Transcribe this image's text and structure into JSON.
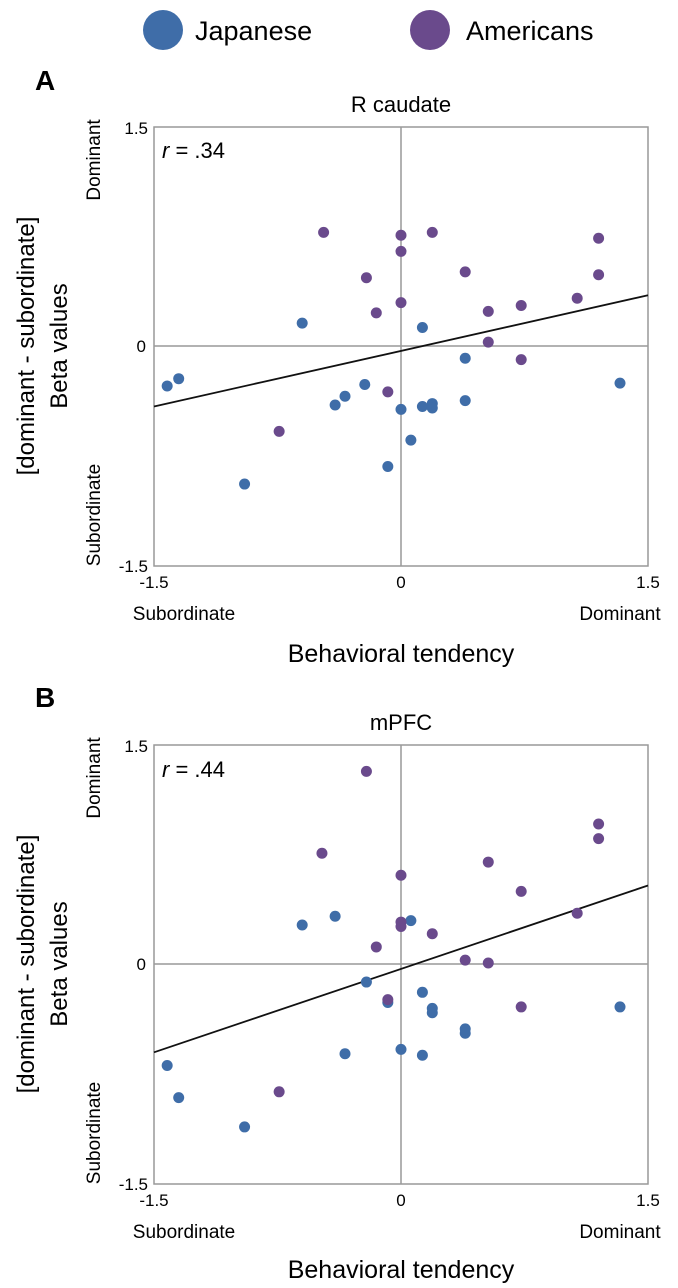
{
  "legend": {
    "items": [
      {
        "label": "Japanese",
        "color": "#3f6da8"
      },
      {
        "label": "Americans",
        "color": "#6a4a8c"
      }
    ]
  },
  "colors": {
    "Japanese": "#3f6da8",
    "Americans": "#6a4a8c",
    "axis": "#999999",
    "fit_line": "#111111"
  },
  "chart_data": [
    {
      "panel": "A",
      "type": "scatter",
      "title": "R caudate",
      "annotation": {
        "prefix": "r",
        "text": " = .34"
      },
      "xlabel": "Behavioral tendency",
      "ylabel_line1": "[dominant - subordinate]",
      "ylabel_line2": "Beta values",
      "x_left_label": "Subordinate",
      "x_right_label": "Dominant",
      "y_top_label": "Dominant",
      "y_bottom_label": "Subordinate",
      "xlim": [
        -1.5,
        1.5
      ],
      "ylim": [
        -1.5,
        1.5
      ],
      "xticks": [
        {
          "value": -1.5,
          "label": "-1.5"
        },
        {
          "value": 0,
          "label": "0"
        },
        {
          "value": 1.5,
          "label": "1.5"
        }
      ],
      "yticks": [
        {
          "value": 1.5,
          "label": "1.5"
        },
        {
          "value": 0,
          "label": "0"
        },
        {
          "value": -1.5,
          "label": "-1.5"
        }
      ],
      "fit_line": [
        [
          -1.5,
          -0.41
        ],
        [
          1.5,
          0.35
        ]
      ],
      "series": [
        {
          "name": "Japanese",
          "points": [
            [
              -1.42,
              -0.27
            ],
            [
              -1.35,
              -0.22
            ],
            [
              -0.95,
              -0.94
            ],
            [
              -0.6,
              0.16
            ],
            [
              -0.4,
              -0.4
            ],
            [
              -0.34,
              -0.34
            ],
            [
              -0.22,
              -0.26
            ],
            [
              -0.08,
              -0.82
            ],
            [
              0.0,
              -0.43
            ],
            [
              0.06,
              -0.64
            ],
            [
              0.13,
              0.13
            ],
            [
              0.13,
              -0.41
            ],
            [
              0.19,
              -0.39
            ],
            [
              0.19,
              -0.42
            ],
            [
              0.39,
              -0.08
            ],
            [
              0.39,
              -0.37
            ],
            [
              1.33,
              -0.25
            ]
          ]
        },
        {
          "name": "Americans",
          "points": [
            [
              -0.74,
              -0.58
            ],
            [
              -0.47,
              0.78
            ],
            [
              -0.21,
              0.47
            ],
            [
              -0.15,
              0.23
            ],
            [
              -0.08,
              -0.31
            ],
            [
              0.0,
              0.76
            ],
            [
              0.0,
              0.65
            ],
            [
              0.0,
              0.3
            ],
            [
              0.19,
              0.78
            ],
            [
              0.39,
              0.51
            ],
            [
              0.53,
              0.24
            ],
            [
              0.53,
              0.03
            ],
            [
              0.73,
              0.28
            ],
            [
              0.73,
              -0.09
            ],
            [
              1.07,
              0.33
            ],
            [
              1.2,
              0.74
            ],
            [
              1.2,
              0.49
            ]
          ]
        }
      ]
    },
    {
      "panel": "B",
      "type": "scatter",
      "title": "mPFC",
      "annotation": {
        "prefix": "r",
        "text": " = .44"
      },
      "xlabel": "Behavioral tendency",
      "ylabel_line1": "[dominant - subordinate]",
      "ylabel_line2": "Beta values",
      "x_left_label": "Subordinate",
      "x_right_label": "Dominant",
      "y_top_label": "Dominant",
      "y_bottom_label": "Subordinate",
      "xlim": [
        -1.5,
        1.5
      ],
      "ylim": [
        -1.5,
        1.5
      ],
      "xticks": [
        {
          "value": -1.5,
          "label": "-1.5"
        },
        {
          "value": 0,
          "label": "0"
        },
        {
          "value": 1.5,
          "label": "1.5"
        }
      ],
      "yticks": [
        {
          "value": 1.5,
          "label": "1.5"
        },
        {
          "value": 0,
          "label": "0"
        },
        {
          "value": -1.5,
          "label": "-1.5"
        }
      ],
      "fit_line": [
        [
          -1.5,
          -0.6
        ],
        [
          1.5,
          0.54
        ]
      ],
      "series": [
        {
          "name": "Japanese",
          "points": [
            [
              -1.42,
              -0.69
            ],
            [
              -1.35,
              -0.91
            ],
            [
              -0.95,
              -1.11
            ],
            [
              -0.6,
              0.27
            ],
            [
              -0.4,
              0.33
            ],
            [
              -0.34,
              -0.61
            ],
            [
              -0.21,
              -0.12
            ],
            [
              -0.08,
              -0.26
            ],
            [
              0.0,
              -0.58
            ],
            [
              0.06,
              0.3
            ],
            [
              0.13,
              -0.19
            ],
            [
              0.13,
              -0.62
            ],
            [
              0.19,
              -0.3
            ],
            [
              0.19,
              -0.33
            ],
            [
              0.39,
              -0.44
            ],
            [
              0.39,
              -0.47
            ],
            [
              1.33,
              -0.29
            ]
          ]
        },
        {
          "name": "Americans",
          "points": [
            [
              -0.74,
              -0.87
            ],
            [
              -0.48,
              0.76
            ],
            [
              -0.21,
              1.32
            ],
            [
              -0.15,
              0.12
            ],
            [
              -0.08,
              -0.24
            ],
            [
              0.0,
              0.61
            ],
            [
              0.0,
              0.29
            ],
            [
              0.0,
              0.26
            ],
            [
              0.19,
              0.21
            ],
            [
              0.39,
              0.03
            ],
            [
              0.53,
              0.7
            ],
            [
              0.53,
              0.01
            ],
            [
              0.73,
              0.5
            ],
            [
              0.73,
              -0.29
            ],
            [
              1.07,
              0.35
            ],
            [
              1.2,
              0.96
            ],
            [
              1.2,
              0.86
            ]
          ]
        }
      ]
    }
  ]
}
